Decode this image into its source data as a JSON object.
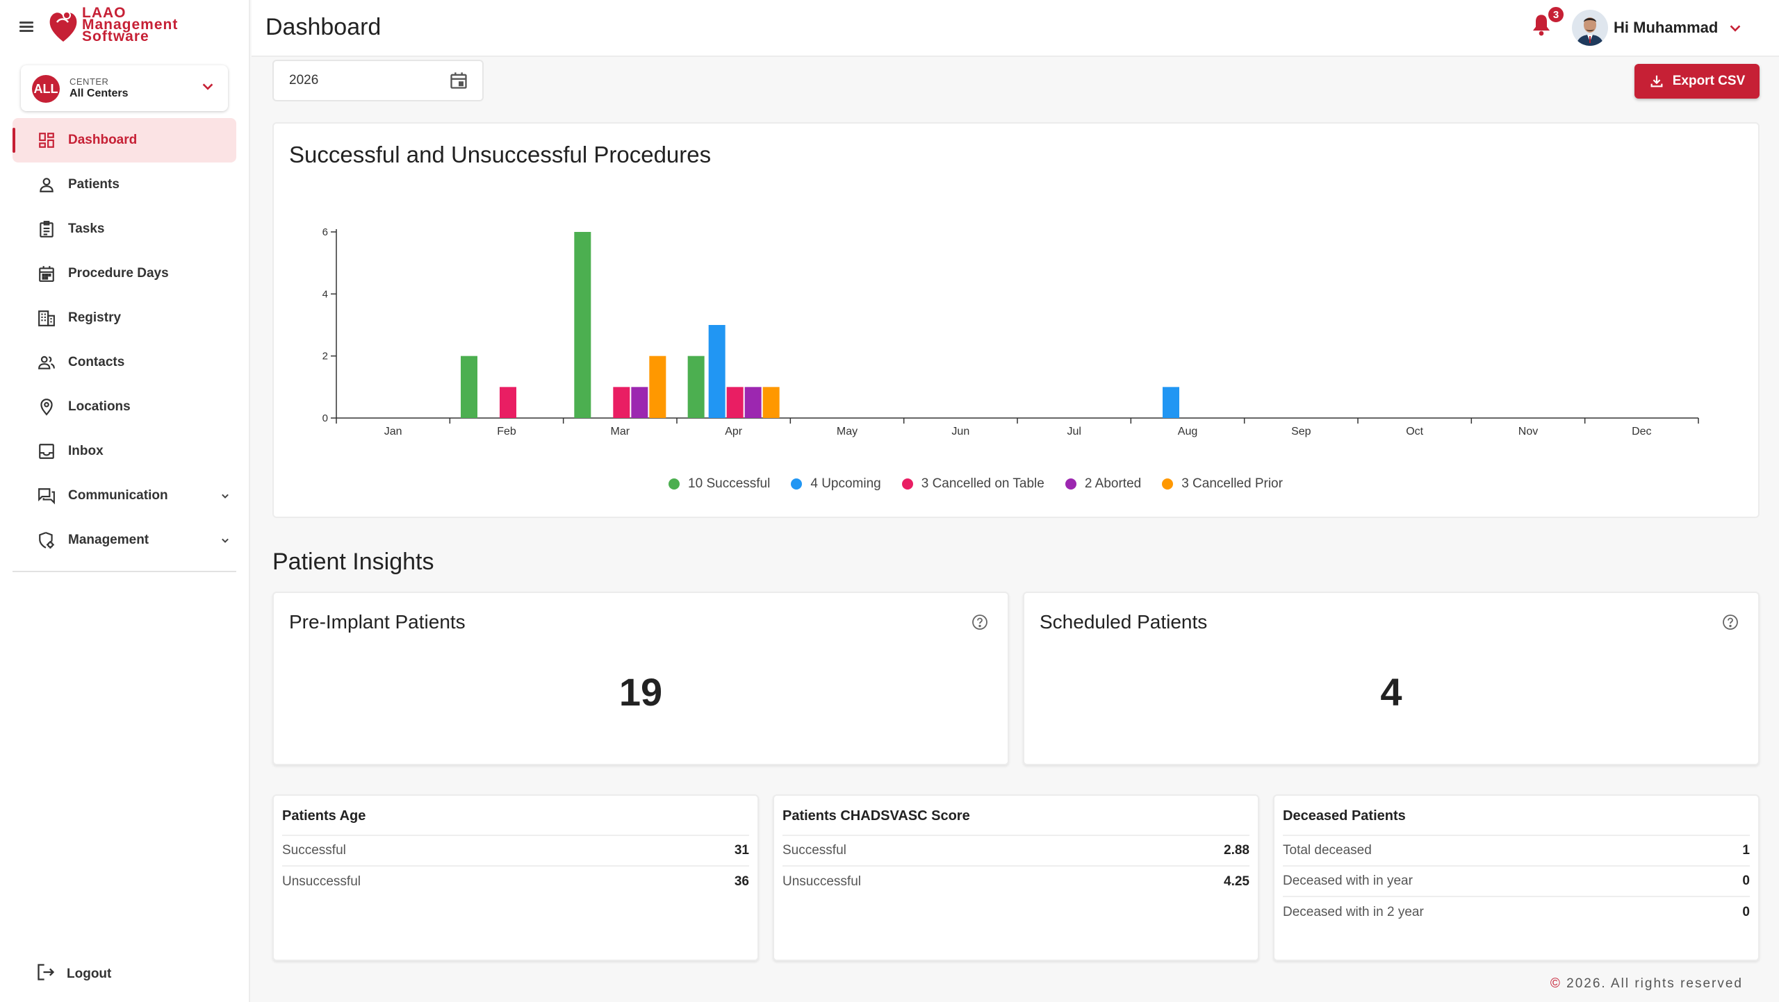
{
  "brand": {
    "name_line1": "LAAO",
    "name_line2": "Management",
    "name_line3": "Software",
    "accent": "#c62035"
  },
  "center": {
    "badge": "ALL",
    "caption": "CENTER",
    "value": "All Centers"
  },
  "sidebar": {
    "items": [
      {
        "label": "Dashboard",
        "icon": "dashboard-icon"
      },
      {
        "label": "Patients",
        "icon": "person-icon"
      },
      {
        "label": "Tasks",
        "icon": "clipboard-icon"
      },
      {
        "label": "Procedure Days",
        "icon": "calendar-icon"
      },
      {
        "label": "Registry",
        "icon": "building-icon"
      },
      {
        "label": "Contacts",
        "icon": "people-icon"
      },
      {
        "label": "Locations",
        "icon": "location-pin-icon"
      },
      {
        "label": "Inbox",
        "icon": "inbox-icon"
      },
      {
        "label": "Communication",
        "icon": "chat-icon"
      },
      {
        "label": "Management",
        "icon": "gear-shield-icon"
      }
    ],
    "logout_label": "Logout"
  },
  "header": {
    "title": "Dashboard",
    "notification_count": "3",
    "greeting": "Hi Muhammad"
  },
  "toolbar": {
    "year": "2026",
    "export_label": "Export CSV"
  },
  "chart_data": {
    "type": "bar",
    "title": "Successful and Unsuccessful Procedures",
    "categories": [
      "Jan",
      "Feb",
      "Mar",
      "Apr",
      "May",
      "Jun",
      "Jul",
      "Aug",
      "Sep",
      "Oct",
      "Nov",
      "Dec"
    ],
    "yticks": [
      0,
      2,
      4,
      6
    ],
    "ylim": [
      0,
      6
    ],
    "series": [
      {
        "name": "Successful",
        "color": "#4caf50",
        "values": [
          0,
          2,
          6,
          2,
          0,
          0,
          0,
          0,
          0,
          0,
          0,
          0
        ]
      },
      {
        "name": "Upcoming",
        "color": "#2196f3",
        "values": [
          0,
          0,
          0,
          3,
          0,
          0,
          0,
          1,
          0,
          0,
          0,
          0
        ]
      },
      {
        "name": "Cancelled on Table",
        "color": "#e91e63",
        "values": [
          0,
          1,
          1,
          1,
          0,
          0,
          0,
          0,
          0,
          0,
          0,
          0
        ]
      },
      {
        "name": "Aborted",
        "color": "#9c27b0",
        "values": [
          0,
          0,
          1,
          1,
          0,
          0,
          0,
          0,
          0,
          0,
          0,
          0
        ]
      },
      {
        "name": "Cancelled Prior",
        "color": "#ff9800",
        "values": [
          0,
          0,
          2,
          1,
          0,
          0,
          0,
          0,
          0,
          0,
          0,
          0
        ]
      }
    ],
    "legend": [
      {
        "label": "10 Successful",
        "color": "#4caf50"
      },
      {
        "label": "4 Upcoming",
        "color": "#2196f3"
      },
      {
        "label": "3 Cancelled on Table",
        "color": "#e91e63"
      },
      {
        "label": "2 Aborted",
        "color": "#9c27b0"
      },
      {
        "label": "3 Cancelled Prior",
        "color": "#ff9800"
      }
    ]
  },
  "insights": {
    "title": "Patient Insights",
    "pre_implant": {
      "title": "Pre-Implant Patients",
      "value": "19"
    },
    "scheduled": {
      "title": "Scheduled Patients",
      "value": "4"
    }
  },
  "tables": {
    "age": {
      "title": "Patients Age",
      "rows": [
        {
          "label": "Successful",
          "value": "31"
        },
        {
          "label": "Unsuccessful",
          "value": "36"
        }
      ]
    },
    "chadsvasc": {
      "title": "Patients CHADSVASC Score",
      "rows": [
        {
          "label": "Successful",
          "value": "2.88"
        },
        {
          "label": "Unsuccessful",
          "value": "4.25"
        }
      ]
    },
    "deceased": {
      "title": "Deceased Patients",
      "rows": [
        {
          "label": "Total deceased",
          "value": "1"
        },
        {
          "label": "Deceased with in year",
          "value": "0"
        },
        {
          "label": "Deceased with in 2 year",
          "value": "0"
        }
      ]
    }
  },
  "footer": {
    "copyright_symbol": "©",
    "text": " 2026. All rights reserved"
  }
}
